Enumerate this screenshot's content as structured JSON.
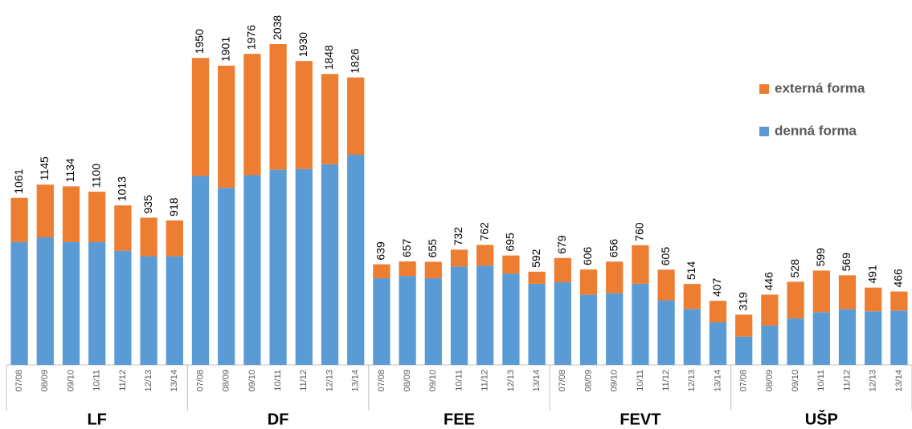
{
  "chart_data": {
    "type": "stacked_bar",
    "groups": [
      "LF",
      "DF",
      "FEE",
      "FEVT",
      "UŠP"
    ],
    "categories": [
      "07/08",
      "08/09",
      "09/10",
      "10/11",
      "11/12",
      "12/13",
      "13/14",
      "07/08",
      "08/09",
      "09/10",
      "10/11",
      "11/12",
      "12/13",
      "13/14",
      "07/08",
      "08/09",
      "09/10",
      "10/11",
      "11/12",
      "12/13",
      "13/14",
      "07/08",
      "08/09",
      "09/10",
      "10/11",
      "11/12",
      "12/13",
      "13/14",
      "07/08",
      "08/09",
      "09/10",
      "10/11",
      "11/12",
      "12/13",
      "13/14"
    ],
    "series": [
      {
        "name": "denná forma",
        "color": "#5b9bd5",
        "values": [
          780,
          810,
          780,
          780,
          725,
          690,
          690,
          1200,
          1125,
          1205,
          1240,
          1245,
          1275,
          1335,
          550,
          565,
          550,
          625,
          630,
          580,
          515,
          525,
          445,
          455,
          515,
          410,
          355,
          270,
          180,
          250,
          295,
          335,
          355,
          340,
          345
        ]
      },
      {
        "name": "externá forma",
        "color": "#ed7d31",
        "values": [
          281,
          335,
          354,
          320,
          288,
          245,
          228,
          750,
          776,
          771,
          798,
          685,
          573,
          491,
          89,
          92,
          105,
          107,
          132,
          115,
          77,
          154,
          161,
          201,
          245,
          195,
          159,
          137,
          139,
          196,
          233,
          264,
          214,
          151,
          121
        ]
      }
    ],
    "totals": [
      1061,
      1145,
      1134,
      1100,
      1013,
      935,
      918,
      1950,
      1901,
      1976,
      2038,
      1930,
      1848,
      1826,
      639,
      657,
      655,
      732,
      762,
      695,
      592,
      679,
      606,
      656,
      760,
      605,
      514,
      407,
      319,
      446,
      528,
      599,
      569,
      491,
      466
    ],
    "legend": "right"
  }
}
